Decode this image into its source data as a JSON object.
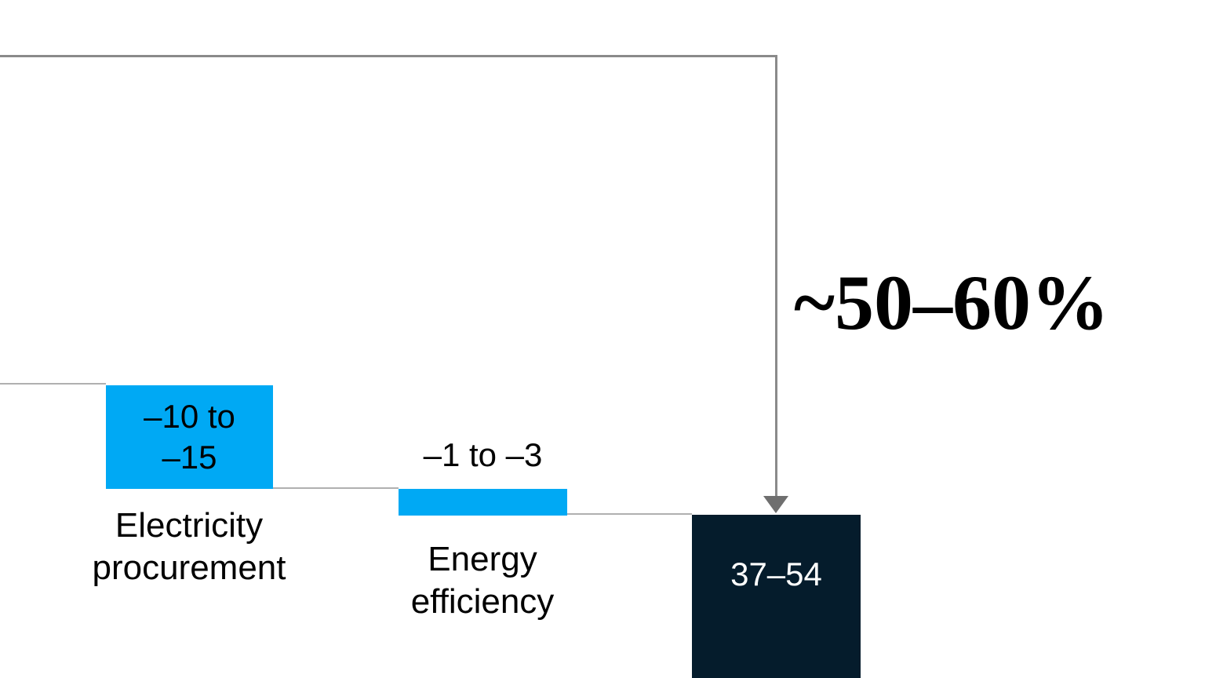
{
  "chart_data": {
    "type": "waterfall",
    "orientation": "vertical",
    "partial_view": true,
    "bars": [
      {
        "category": "Electricity procurement",
        "value_label": "–10 to –15",
        "value_range": [
          -15,
          -10
        ],
        "color": "#00a9f4",
        "role": "decrease"
      },
      {
        "category": "Energy efficiency",
        "value_label": "–1 to –3",
        "value_range": [
          -3,
          -1
        ],
        "color": "#00a9f4",
        "role": "decrease"
      },
      {
        "category": "",
        "value_label": "37–54",
        "value_range": [
          37,
          54
        ],
        "color": "#051c2c",
        "role": "total"
      }
    ],
    "annotation": {
      "label": "~50–60%",
      "shape": "bracket-with-down-arrow",
      "color": "#8a8a8a"
    },
    "grid": false,
    "legend": false
  },
  "labels": {
    "bar1_value": "–10 to\n–15",
    "bar1_category": "Electricity\nprocurement",
    "bar2_value": "–1 to –3",
    "bar2_category": "Energy\nefficiency",
    "total_value": "37–54",
    "annotation": "~50–60%"
  },
  "colors": {
    "bar_blue": "#00a9f4",
    "bar_navy": "#051c2c",
    "bracket_gray": "#8a8a8a",
    "arrow_gray": "#6f6f6f",
    "connector_gray": "#b0b0b0",
    "text_black": "#000000",
    "text_white": "#ffffff",
    "background": "#ffffff"
  }
}
